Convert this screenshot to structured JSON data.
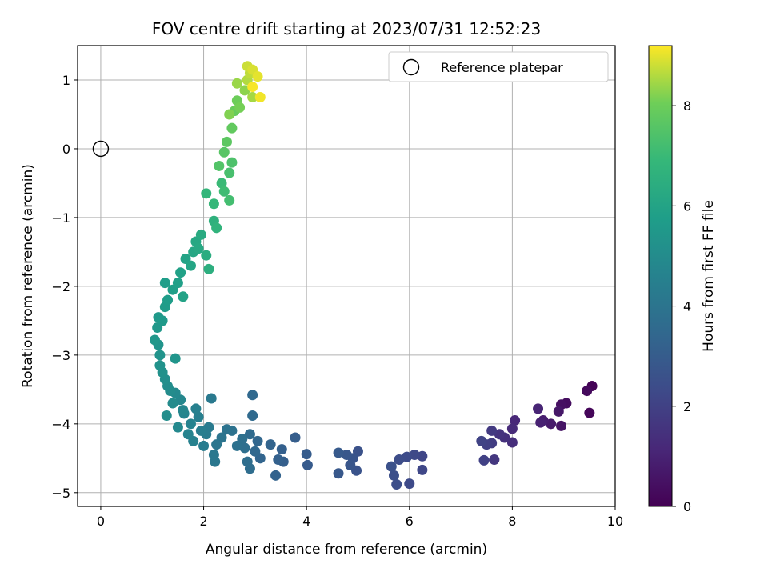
{
  "chart_data": {
    "type": "scatter",
    "title": "FOV centre drift starting at 2023/07/31 12:52:23",
    "xlabel": "Angular distance from reference (arcmin)",
    "ylabel": "Rotation from reference (arcmin)",
    "xlim": [
      -0.45,
      10.0
    ],
    "ylim": [
      -5.2,
      1.5
    ],
    "xticks": [
      0,
      2,
      4,
      6,
      8,
      10
    ],
    "yticks": [
      -5,
      -4,
      -3,
      -2,
      -1,
      0,
      1
    ],
    "grid": true,
    "legend": {
      "placement": "top-right",
      "entries": [
        "Reference platepar"
      ]
    },
    "reference_point": {
      "x": 0,
      "y": 0,
      "marker": "open-circle"
    },
    "colorbar": {
      "label": "Hours from first FF file",
      "range": [
        0,
        9.2
      ],
      "ticks": [
        0,
        2,
        4,
        6,
        8
      ],
      "colormap": "viridis"
    },
    "series": [
      {
        "points": [
          [
            9.55,
            -3.45,
            0.05
          ],
          [
            9.5,
            -3.84,
            0.15
          ],
          [
            9.45,
            -3.52,
            0.25
          ],
          [
            9.05,
            -3.7,
            0.35
          ],
          [
            8.95,
            -3.72,
            0.45
          ],
          [
            8.95,
            -4.03,
            0.55
          ],
          [
            8.9,
            -3.82,
            0.65
          ],
          [
            8.75,
            -4.0,
            0.75
          ],
          [
            8.6,
            -3.95,
            0.85
          ],
          [
            8.55,
            -3.98,
            0.95
          ],
          [
            8.5,
            -3.78,
            1.05
          ],
          [
            8.05,
            -3.95,
            1.15
          ],
          [
            8.0,
            -4.07,
            1.25
          ],
          [
            8.0,
            -4.27,
            1.35
          ],
          [
            7.85,
            -4.2,
            1.45
          ],
          [
            7.75,
            -4.15,
            1.55
          ],
          [
            7.65,
            -4.52,
            1.65
          ],
          [
            7.6,
            -4.1,
            1.75
          ],
          [
            7.6,
            -4.28,
            1.85
          ],
          [
            7.5,
            -4.3,
            1.95
          ],
          [
            7.45,
            -4.53,
            2.0
          ],
          [
            7.4,
            -4.25,
            2.05
          ],
          [
            6.25,
            -4.47,
            2.15
          ],
          [
            6.25,
            -4.67,
            2.2
          ],
          [
            6.1,
            -4.45,
            2.25
          ],
          [
            6.0,
            -4.87,
            2.3
          ],
          [
            5.95,
            -4.48,
            2.35
          ],
          [
            5.8,
            -4.52,
            2.4
          ],
          [
            5.75,
            -4.88,
            2.45
          ],
          [
            5.7,
            -4.75,
            2.5
          ],
          [
            5.65,
            -4.62,
            2.55
          ],
          [
            5.0,
            -4.4,
            2.6
          ],
          [
            4.97,
            -4.68,
            2.65
          ],
          [
            4.9,
            -4.5,
            2.7
          ],
          [
            4.85,
            -4.6,
            2.75
          ],
          [
            4.78,
            -4.45,
            2.8
          ],
          [
            4.62,
            -4.72,
            2.85
          ],
          [
            4.62,
            -4.42,
            2.9
          ],
          [
            4.02,
            -4.6,
            2.95
          ],
          [
            4.0,
            -4.44,
            3.0
          ],
          [
            3.78,
            -4.2,
            3.05
          ],
          [
            3.55,
            -4.55,
            3.1
          ],
          [
            3.52,
            -4.37,
            3.15
          ],
          [
            3.45,
            -4.52,
            3.2
          ],
          [
            3.4,
            -4.75,
            3.25
          ],
          [
            3.3,
            -4.3,
            3.3
          ],
          [
            3.1,
            -4.5,
            3.35
          ],
          [
            3.05,
            -4.25,
            3.4
          ],
          [
            3.0,
            -4.4,
            3.45
          ],
          [
            2.95,
            -3.58,
            3.5
          ],
          [
            2.95,
            -3.88,
            3.55
          ],
          [
            2.9,
            -4.15,
            3.6
          ],
          [
            2.9,
            -4.65,
            3.65
          ],
          [
            2.85,
            -4.55,
            3.7
          ],
          [
            2.8,
            -4.35,
            3.75
          ],
          [
            2.75,
            -4.22,
            3.8
          ],
          [
            2.65,
            -4.32,
            3.85
          ],
          [
            2.55,
            -4.1,
            3.9
          ],
          [
            2.45,
            -4.08,
            3.95
          ],
          [
            2.35,
            -4.2,
            4.0
          ],
          [
            2.25,
            -4.3,
            4.05
          ],
          [
            2.22,
            -4.55,
            4.1
          ],
          [
            2.2,
            -4.45,
            4.15
          ],
          [
            2.15,
            -3.63,
            4.2
          ],
          [
            2.1,
            -4.05,
            4.25
          ],
          [
            2.05,
            -4.15,
            4.3
          ],
          [
            2.0,
            -4.32,
            4.35
          ],
          [
            1.95,
            -4.1,
            4.4
          ],
          [
            1.9,
            -3.9,
            4.45
          ],
          [
            1.85,
            -3.78,
            4.5
          ],
          [
            1.8,
            -4.25,
            4.55
          ],
          [
            1.75,
            -4.0,
            4.6
          ],
          [
            1.7,
            -4.15,
            4.65
          ],
          [
            1.62,
            -3.85,
            4.7
          ],
          [
            1.6,
            -3.8,
            4.75
          ],
          [
            1.55,
            -3.65,
            4.8
          ],
          [
            1.5,
            -4.05,
            4.85
          ],
          [
            1.45,
            -3.55,
            4.9
          ],
          [
            1.4,
            -3.7,
            4.95
          ],
          [
            1.35,
            -3.52,
            5.0
          ],
          [
            1.3,
            -3.45,
            5.05
          ],
          [
            1.28,
            -3.88,
            5.1
          ],
          [
            1.25,
            -3.35,
            5.15
          ],
          [
            1.2,
            -3.25,
            5.2
          ],
          [
            1.15,
            -3.15,
            5.25
          ],
          [
            1.15,
            -3.0,
            5.3
          ],
          [
            1.12,
            -2.85,
            5.35
          ],
          [
            1.45,
            -3.05,
            5.4
          ],
          [
            1.05,
            -2.78,
            5.45
          ],
          [
            1.1,
            -2.6,
            5.5
          ],
          [
            1.12,
            -2.45,
            5.55
          ],
          [
            1.2,
            -2.5,
            5.6
          ],
          [
            1.25,
            -2.3,
            5.65
          ],
          [
            1.3,
            -2.2,
            5.7
          ],
          [
            1.25,
            -1.95,
            5.75
          ],
          [
            1.4,
            -2.05,
            5.8
          ],
          [
            1.5,
            -1.95,
            5.85
          ],
          [
            1.55,
            -1.8,
            5.9
          ],
          [
            1.6,
            -2.15,
            5.95
          ],
          [
            1.65,
            -1.6,
            6.0
          ],
          [
            1.75,
            -1.7,
            6.05
          ],
          [
            1.8,
            -1.5,
            6.1
          ],
          [
            1.85,
            -1.35,
            6.15
          ],
          [
            1.9,
            -1.45,
            6.2
          ],
          [
            1.95,
            -1.25,
            6.3
          ],
          [
            2.05,
            -1.55,
            6.4
          ],
          [
            2.1,
            -1.75,
            6.5
          ],
          [
            2.2,
            -1.05,
            6.6
          ],
          [
            2.25,
            -1.15,
            6.7
          ],
          [
            2.05,
            -0.65,
            6.8
          ],
          [
            2.2,
            -0.8,
            6.9
          ],
          [
            2.35,
            -0.5,
            7.0
          ],
          [
            2.4,
            -0.62,
            7.1
          ],
          [
            2.5,
            -0.75,
            7.2
          ],
          [
            2.5,
            -0.35,
            7.3
          ],
          [
            2.55,
            -0.2,
            7.4
          ],
          [
            2.3,
            -0.25,
            7.5
          ],
          [
            2.4,
            -0.05,
            7.6
          ],
          [
            2.45,
            0.1,
            7.7
          ],
          [
            2.55,
            0.3,
            7.8
          ],
          [
            2.6,
            0.55,
            7.9
          ],
          [
            2.65,
            0.7,
            8.0
          ],
          [
            2.7,
            0.6,
            8.1
          ],
          [
            2.5,
            0.5,
            8.2
          ],
          [
            2.8,
            0.85,
            8.3
          ],
          [
            2.65,
            0.95,
            8.4
          ],
          [
            2.95,
            0.75,
            8.5
          ],
          [
            2.85,
            1.0,
            8.6
          ],
          [
            2.9,
            1.1,
            8.7
          ],
          [
            2.85,
            1.2,
            8.8
          ],
          [
            2.95,
            1.15,
            8.9
          ],
          [
            3.05,
            1.05,
            9.0
          ],
          [
            3.1,
            0.75,
            9.1
          ],
          [
            2.95,
            0.9,
            9.15
          ]
        ]
      }
    ]
  }
}
